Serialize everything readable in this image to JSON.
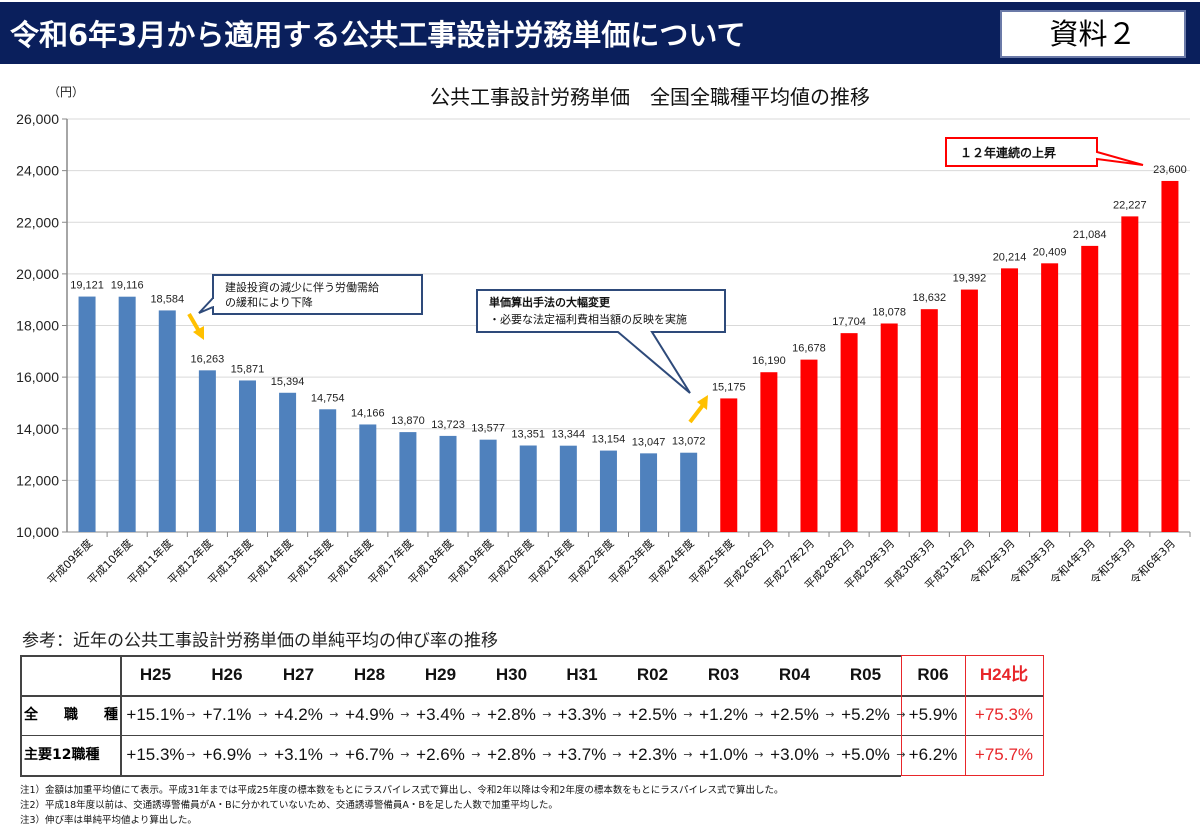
{
  "header": {
    "title": "令和6年3月から適用する公共工事設計労務単価について",
    "doc_label": "資料２"
  },
  "chart_data": {
    "type": "bar",
    "title": "公共工事設計労務単価　全国全職種平均値の推移",
    "ylabel": "（円）",
    "xlabel": "",
    "ylim": [
      10000,
      26000
    ],
    "yticks": [
      10000,
      12000,
      14000,
      16000,
      18000,
      20000,
      22000,
      24000,
      26000
    ],
    "ytick_labels": [
      "10,000",
      "12,000",
      "14,000",
      "16,000",
      "18,000",
      "20,000",
      "22,000",
      "24,000",
      "26,000"
    ],
    "grid": true,
    "categories": [
      "平成09年度",
      "平成10年度",
      "平成11年度",
      "平成12年度",
      "平成13年度",
      "平成14年度",
      "平成15年度",
      "平成16年度",
      "平成17年度",
      "平成18年度",
      "平成19年度",
      "平成20年度",
      "平成21年度",
      "平成22年度",
      "平成23年度",
      "平成24年度",
      "平成25年度",
      "平成26年2月",
      "平成27年2月",
      "平成28年2月",
      "平成29年3月",
      "平成30年3月",
      "平成31年2月",
      "令和2年3月",
      "令和3年3月",
      "令和4年3月",
      "令和5年3月",
      "令和6年3月"
    ],
    "values": [
      19121,
      19116,
      18584,
      16263,
      15871,
      15394,
      14754,
      14166,
      13870,
      13723,
      13577,
      13351,
      13344,
      13154,
      13047,
      13072,
      15175,
      16190,
      16678,
      17704,
      18078,
      18632,
      19392,
      20214,
      20409,
      21084,
      22227,
      23600
    ],
    "value_labels": [
      "19,121",
      "19,116",
      "18,584",
      "16,263",
      "15,871",
      "15,394",
      "14,754",
      "14,166",
      "13,870",
      "13,723",
      "13,577",
      "13,351",
      "13,344",
      "13,154",
      "13,047",
      "13,072",
      "15,175",
      "16,190",
      "16,678",
      "17,704",
      "18,078",
      "18,632",
      "19,392",
      "20,214",
      "20,409",
      "21,084",
      "22,227",
      "23,600"
    ],
    "bar_colors": {
      "declining": "#4f81bd",
      "rising": "#ff0000"
    },
    "rising_from_index": 16,
    "annotations": [
      {
        "id": "decline",
        "lines": [
          "建設投資の減少に伴う労働需給",
          "の緩和により下降"
        ]
      },
      {
        "id": "method-change",
        "lines": [
          "単価算出手法の大幅変更",
          "・必要な法定福利費相当額の反映を実施"
        ]
      },
      {
        "id": "consecutive-rise",
        "lines": [
          "１２年連続の上昇"
        ]
      }
    ],
    "arrow_color": "#ffc000"
  },
  "reference": {
    "title": "参考：近年の公共工事設計労務単価の単純平均の伸び率の推移",
    "columns": [
      "H25",
      "H26",
      "H27",
      "H28",
      "H29",
      "H30",
      "H31",
      "R02",
      "R03",
      "R04",
      "R05",
      "R06",
      "H24比"
    ],
    "rows": [
      {
        "label": "全職種",
        "values": [
          "+15.1%",
          "+7.1%",
          "+4.2%",
          "+4.9%",
          "+3.4%",
          "+2.8%",
          "+3.3%",
          "+2.5%",
          "+1.2%",
          "+2.5%",
          "+5.2%",
          "+5.9%",
          "+75.3%"
        ]
      },
      {
        "label": "主要12職種",
        "values": [
          "+15.3%",
          "+6.9%",
          "+3.1%",
          "+6.7%",
          "+2.6%",
          "+2.8%",
          "+3.7%",
          "+2.3%",
          "+1.0%",
          "+3.0%",
          "+5.0%",
          "+6.2%",
          "+75.7%"
        ]
      }
    ],
    "arrow": "→",
    "highlight_color": "#e8262a"
  },
  "notes": [
    "注1）金額は加重平均値にて表示。平成31年までは平成25年度の標本数をもとにラスパイレス式で算出し、令和2年以降は令和2年度の標本数をもとにラスパイレス式で算出した。",
    "注2）平成18年度以前は、交通誘導警備員がA・Bに分かれていないため、交通誘導警備員A・Bを足した人数で加重平均した。",
    "注3）伸び率は単純平均値より算出した。"
  ]
}
